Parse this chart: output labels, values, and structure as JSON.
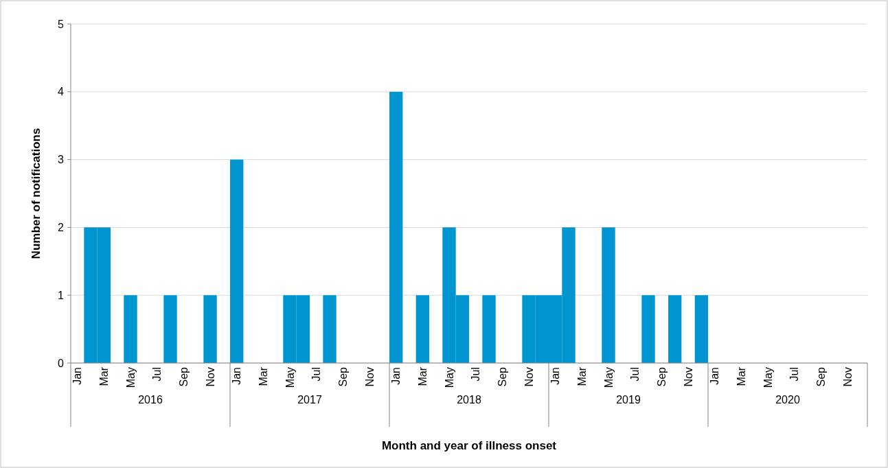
{
  "chart_data": {
    "type": "bar",
    "xlabel": "Month and year of illness onset",
    "ylabel": "Number of notifications",
    "categories": [
      "Jan",
      null,
      "Mar",
      null,
      "May",
      null,
      "Jul",
      null,
      "Sep",
      null,
      "Nov",
      null,
      "Jan",
      null,
      "Mar",
      null,
      "May",
      null,
      "Jul",
      null,
      "Sep",
      null,
      "Nov",
      null,
      "Jan",
      null,
      "Mar",
      null,
      "May",
      null,
      "Jul",
      null,
      "Sep",
      null,
      "Nov",
      null,
      "Jan",
      null,
      "Mar",
      null,
      "May",
      null,
      "Jul",
      null,
      "Sep",
      null,
      "Nov",
      null,
      "Jan",
      null,
      "Mar",
      null,
      "May",
      null,
      "Jul",
      null,
      "Sep",
      null,
      "Nov",
      null
    ],
    "values": [
      0,
      2,
      2,
      0,
      1,
      0,
      0,
      1,
      0,
      0,
      1,
      0,
      3,
      0,
      0,
      0,
      1,
      1,
      0,
      1,
      0,
      0,
      0,
      0,
      4,
      0,
      1,
      0,
      2,
      1,
      0,
      1,
      0,
      0,
      1,
      1,
      1,
      2,
      0,
      0,
      2,
      0,
      0,
      1,
      0,
      1,
      0,
      1,
      0,
      0,
      0,
      0,
      0,
      0,
      0,
      0,
      0,
      0,
      0,
      0
    ],
    "color": "#0094d0",
    "ylim": [
      0,
      5
    ],
    "yticks": [
      0,
      1,
      2,
      3,
      4,
      5
    ],
    "grid": "y",
    "annotations": [
      "2016",
      "2017",
      "2018",
      "2019",
      "2020"
    ]
  }
}
